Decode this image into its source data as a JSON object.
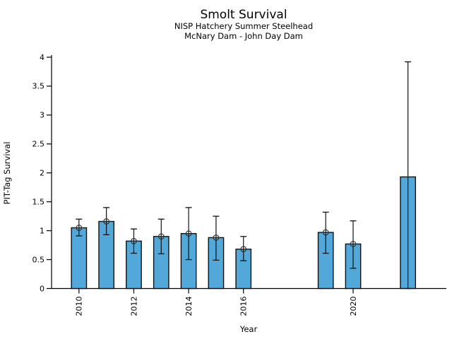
{
  "chart_data": {
    "type": "bar",
    "title": "Smolt Survival",
    "subtitle1": "NISP Hatchery Summer Steelhead",
    "subtitle2": "McNary Dam - John Day Dam",
    "xlabel": "Year",
    "ylabel": "PIT-Tag Survival",
    "ylim": [
      0,
      4
    ],
    "xlim": [
      2009,
      2023.4
    ],
    "yticks": [
      0,
      0.5,
      1,
      1.5,
      2,
      2.5,
      3,
      3.5,
      4
    ],
    "ytick_labels": [
      "0",
      "0.5",
      "1",
      "1.5",
      "2",
      "2.5",
      "3",
      "3.5",
      "4"
    ],
    "xticks": [
      2010,
      2012,
      2014,
      2016,
      2020
    ],
    "xtick_labels": [
      "2010",
      "2012",
      "2014",
      "2016",
      "2020"
    ],
    "grid": false,
    "legend": "none",
    "bar_width_years": 0.55,
    "bar_color": "#52a8d8",
    "bar_edge_color": "#111111",
    "error_color": "#111111",
    "marker_style": "open-circle-crosshair",
    "background_color": "#ffffff",
    "points": [
      {
        "year": 2010,
        "value": 1.05,
        "ci_low": 0.91,
        "ci_high": 1.2,
        "marker": true
      },
      {
        "year": 2011,
        "value": 1.16,
        "ci_low": 0.93,
        "ci_high": 1.4,
        "marker": true
      },
      {
        "year": 2012,
        "value": 0.82,
        "ci_low": 0.61,
        "ci_high": 1.03,
        "marker": true
      },
      {
        "year": 2013,
        "value": 0.9,
        "ci_low": 0.6,
        "ci_high": 1.2,
        "marker": true
      },
      {
        "year": 2014,
        "value": 0.95,
        "ci_low": 0.5,
        "ci_high": 1.4,
        "marker": true
      },
      {
        "year": 2015,
        "value": 0.88,
        "ci_low": 0.49,
        "ci_high": 1.25,
        "marker": true
      },
      {
        "year": 2016,
        "value": 0.68,
        "ci_low": 0.48,
        "ci_high": 0.9,
        "marker": true
      },
      {
        "year": 2019,
        "value": 0.97,
        "ci_low": 0.61,
        "ci_high": 1.32,
        "marker": true
      },
      {
        "year": 2020,
        "value": 0.77,
        "ci_low": 0.35,
        "ci_high": 1.17,
        "marker": true
      },
      {
        "year": 2022,
        "value": 1.93,
        "ci_low": 0.0,
        "ci_high": 3.92,
        "marker": false
      }
    ]
  }
}
